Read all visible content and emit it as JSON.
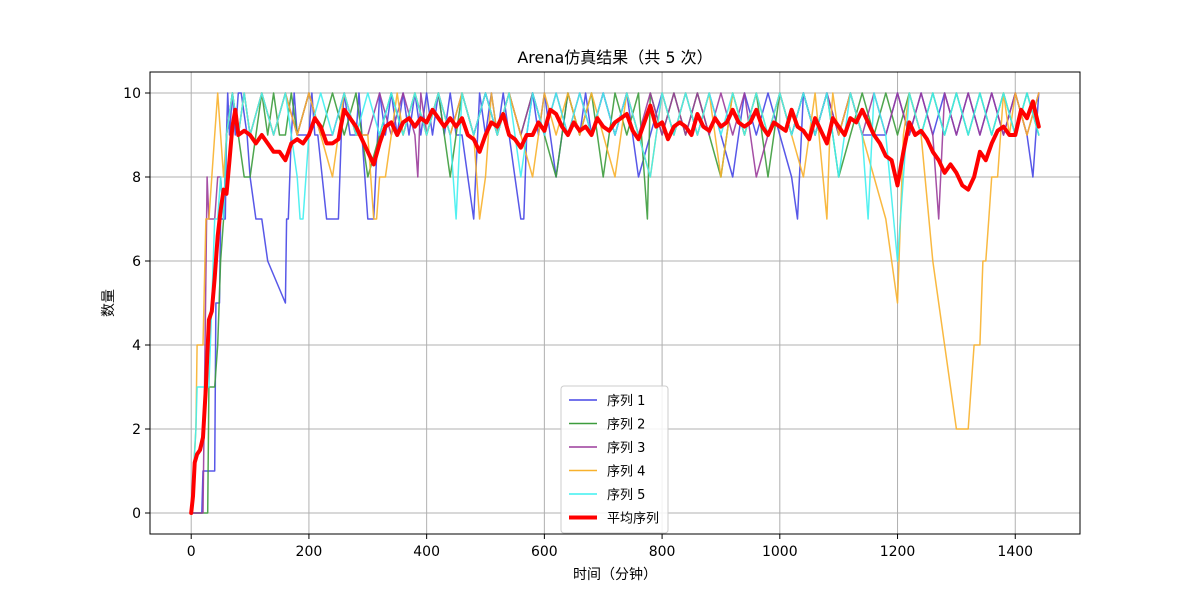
{
  "chart_data": {
    "type": "line",
    "title": "Arena仿真结果（共 5 次）",
    "xlabel": "时间（分钟）",
    "ylabel": "数量",
    "xlim": [
      -70,
      1510
    ],
    "ylim": [
      -0.5,
      10.5
    ],
    "xticks": [
      0,
      200,
      400,
      600,
      800,
      1000,
      1200,
      1400
    ],
    "yticks": [
      0,
      2,
      4,
      6,
      8,
      10
    ],
    "grid": true,
    "legend_position": "lower-center",
    "series": [
      {
        "name": "序列 1",
        "color": "#4646e6",
        "width": 1.5,
        "x": [
          0,
          10,
          18,
          20,
          40,
          42,
          48,
          50,
          55,
          58,
          60,
          62,
          65,
          70,
          75,
          80,
          85,
          95,
          100,
          110,
          115,
          120,
          130,
          160,
          162,
          165,
          170,
          175,
          180,
          185,
          200,
          205,
          210,
          215,
          230,
          250,
          255,
          260,
          270,
          280,
          285,
          290,
          300,
          310,
          320,
          330,
          340,
          350,
          360,
          370,
          380,
          390,
          400,
          410,
          420,
          430,
          440,
          450,
          460,
          470,
          480,
          490,
          500,
          510,
          520,
          530,
          540,
          550,
          560,
          565,
          570,
          580,
          590,
          600,
          620,
          640,
          660,
          670,
          680,
          700,
          720,
          740,
          760,
          780,
          800,
          820,
          840,
          860,
          880,
          900,
          920,
          940,
          960,
          980,
          1000,
          1020,
          1030,
          1040,
          1060,
          1080,
          1100,
          1120,
          1140,
          1160,
          1180,
          1200,
          1220,
          1240,
          1260,
          1280,
          1300,
          1320,
          1340,
          1360,
          1380,
          1400,
          1420,
          1430,
          1440
        ],
        "y": [
          0,
          0,
          0,
          1,
          1,
          5,
          5,
          7,
          7,
          7,
          9,
          10,
          9,
          10,
          9,
          10,
          10,
          9,
          8,
          7,
          7,
          7,
          6,
          5,
          7,
          7,
          9,
          10,
          9,
          9,
          9,
          10,
          9,
          9,
          7,
          7,
          9,
          10,
          9,
          9,
          10,
          9,
          7,
          7,
          10,
          9,
          10,
          9,
          10,
          9,
          10,
          9,
          10,
          9,
          10,
          9,
          10,
          9,
          9,
          8,
          7,
          10,
          9,
          10,
          9,
          10,
          9,
          8,
          7,
          7,
          9,
          10,
          9,
          10,
          8,
          10,
          9,
          10,
          9,
          10,
          9,
          10,
          8,
          9,
          10,
          9,
          10,
          9,
          10,
          9,
          8,
          10,
          9,
          10,
          9,
          8,
          7,
          10,
          9,
          10,
          9,
          10,
          9,
          9,
          9,
          10,
          9,
          10,
          9,
          10,
          9,
          10,
          9,
          10,
          9,
          10,
          9,
          8,
          10
        ]
      },
      {
        "name": "序列 2",
        "color": "#3c9c3c",
        "width": 1.5,
        "x": [
          0,
          20,
          28,
          30,
          40,
          45,
          50,
          55,
          60,
          70,
          80,
          90,
          100,
          110,
          120,
          130,
          140,
          150,
          160,
          170,
          180,
          200,
          220,
          240,
          260,
          280,
          300,
          320,
          340,
          360,
          380,
          400,
          420,
          440,
          460,
          480,
          500,
          520,
          540,
          560,
          580,
          600,
          620,
          640,
          660,
          680,
          700,
          720,
          740,
          760,
          775,
          780,
          800,
          820,
          840,
          860,
          880,
          900,
          920,
          940,
          960,
          980,
          1000,
          1020,
          1040,
          1060,
          1080,
          1100,
          1120,
          1140,
          1160,
          1180,
          1200,
          1220,
          1240,
          1260,
          1280,
          1300,
          1320,
          1340,
          1360,
          1380,
          1400,
          1420,
          1440
        ],
        "y": [
          0,
          0,
          0,
          3,
          3,
          4,
          6,
          7,
          9,
          10,
          9,
          8,
          8,
          9,
          10,
          9,
          10,
          9,
          9,
          10,
          9,
          10,
          9,
          10,
          9,
          10,
          8,
          9,
          10,
          9,
          10,
          9,
          10,
          8,
          10,
          9,
          10,
          9,
          10,
          9,
          10,
          9,
          8,
          10,
          9,
          10,
          8,
          10,
          9,
          10,
          7,
          10,
          9,
          10,
          9,
          10,
          9,
          8,
          10,
          9,
          10,
          8,
          10,
          9,
          10,
          9,
          10,
          8,
          9,
          10,
          9,
          10,
          9,
          10,
          9,
          10,
          9,
          10,
          9,
          10,
          9,
          10,
          9,
          10,
          9
        ]
      },
      {
        "name": "序列 3",
        "color": "#9b3c9b",
        "width": 1.5,
        "x": [
          0,
          20,
          27,
          30,
          40,
          45,
          50,
          55,
          60,
          70,
          80,
          90,
          100,
          120,
          140,
          160,
          180,
          200,
          220,
          240,
          260,
          280,
          300,
          320,
          340,
          360,
          380,
          385,
          390,
          400,
          420,
          440,
          460,
          480,
          500,
          520,
          540,
          560,
          580,
          600,
          620,
          640,
          660,
          680,
          700,
          720,
          740,
          760,
          780,
          800,
          820,
          840,
          860,
          880,
          900,
          920,
          940,
          960,
          980,
          1000,
          1020,
          1040,
          1060,
          1080,
          1100,
          1120,
          1140,
          1160,
          1180,
          1200,
          1220,
          1240,
          1260,
          1270,
          1280,
          1300,
          1320,
          1340,
          1360,
          1380,
          1400,
          1420,
          1440
        ],
        "y": [
          0,
          0,
          8,
          7,
          7,
          8,
          8,
          7,
          9,
          10,
          9,
          10,
          9,
          10,
          9,
          10,
          9,
          10,
          9,
          9,
          10,
          9,
          9,
          10,
          9,
          10,
          9,
          8,
          10,
          9,
          10,
          9,
          10,
          9,
          10,
          9,
          10,
          9,
          10,
          9,
          10,
          9,
          10,
          9,
          10,
          9,
          10,
          9,
          10,
          9,
          10,
          9,
          10,
          9,
          10,
          9,
          10,
          8,
          9,
          10,
          9,
          10,
          9,
          10,
          9,
          10,
          9,
          10,
          9,
          10,
          9,
          10,
          9,
          7,
          10,
          9,
          10,
          9,
          10,
          9,
          10,
          9,
          10
        ]
      },
      {
        "name": "序列 4",
        "color": "#f8b12c",
        "width": 1.5,
        "x": [
          0,
          8,
          10,
          20,
          25,
          30,
          40,
          45,
          50,
          55,
          60,
          70,
          80,
          90,
          100,
          120,
          140,
          160,
          180,
          200,
          220,
          240,
          260,
          280,
          300,
          310,
          315,
          320,
          330,
          340,
          350,
          360,
          380,
          400,
          420,
          440,
          460,
          480,
          490,
          500,
          510,
          520,
          540,
          560,
          580,
          600,
          620,
          640,
          660,
          680,
          700,
          720,
          740,
          760,
          780,
          800,
          820,
          840,
          860,
          880,
          900,
          920,
          940,
          960,
          980,
          1000,
          1020,
          1040,
          1060,
          1080,
          1085,
          1090,
          1100,
          1120,
          1140,
          1160,
          1180,
          1200,
          1205,
          1210,
          1220,
          1240,
          1260,
          1280,
          1300,
          1310,
          1320,
          1330,
          1340,
          1345,
          1350,
          1355,
          1360,
          1370,
          1380,
          1390,
          1400,
          1420,
          1440
        ],
        "y": [
          0,
          2,
          4,
          4,
          7,
          7,
          9,
          10,
          9,
          8,
          9,
          10,
          9,
          10,
          9,
          10,
          9,
          10,
          9,
          10,
          9,
          8,
          10,
          9,
          9,
          7,
          7,
          8,
          8,
          9,
          10,
          9,
          10,
          9,
          10,
          9,
          10,
          9,
          7,
          8,
          10,
          9,
          10,
          9,
          8,
          10,
          9,
          10,
          9,
          10,
          9,
          8,
          10,
          9,
          8,
          10,
          9,
          10,
          9,
          10,
          8,
          10,
          9,
          10,
          9,
          10,
          9,
          8,
          10,
          7,
          9,
          10,
          9,
          10,
          9,
          8,
          7,
          5,
          7,
          9,
          10,
          9,
          6,
          4,
          2,
          2,
          2,
          4,
          4,
          6,
          6,
          7,
          8,
          8,
          10,
          9,
          10,
          9,
          10
        ]
      },
      {
        "name": "序列 5",
        "color": "#3ff0f0",
        "width": 1.5,
        "x": [
          0,
          8,
          10,
          20,
          30,
          40,
          45,
          50,
          55,
          60,
          70,
          80,
          90,
          100,
          120,
          140,
          160,
          180,
          185,
          190,
          200,
          220,
          240,
          260,
          280,
          300,
          320,
          340,
          360,
          380,
          400,
          420,
          440,
          450,
          460,
          480,
          500,
          520,
          540,
          560,
          580,
          600,
          620,
          640,
          660,
          680,
          700,
          720,
          740,
          760,
          780,
          800,
          820,
          840,
          860,
          880,
          900,
          920,
          940,
          960,
          980,
          1000,
          1020,
          1040,
          1060,
          1080,
          1100,
          1120,
          1140,
          1150,
          1160,
          1180,
          1200,
          1220,
          1240,
          1260,
          1280,
          1300,
          1320,
          1340,
          1360,
          1380,
          1400,
          1420,
          1440
        ],
        "y": [
          0,
          2,
          3,
          3,
          3,
          7,
          7,
          8,
          7,
          9,
          10,
          9,
          10,
          9,
          10,
          9,
          10,
          8,
          7,
          7,
          9,
          10,
          9,
          10,
          9,
          10,
          9,
          10,
          9,
          10,
          9,
          10,
          9,
          7,
          10,
          9,
          10,
          9,
          10,
          8,
          10,
          9,
          10,
          9,
          10,
          9,
          10,
          9,
          10,
          9,
          8,
          10,
          9,
          10,
          9,
          10,
          9,
          10,
          9,
          10,
          9,
          10,
          9,
          10,
          9,
          10,
          8,
          10,
          9,
          7,
          10,
          9,
          6,
          10,
          9,
          10,
          9,
          10,
          9,
          10,
          9,
          10,
          9,
          10,
          9
        ]
      },
      {
        "name": "平均序列",
        "color": "#ff0000",
        "width": 4,
        "x": [
          0,
          3,
          6,
          10,
          15,
          20,
          25,
          30,
          35,
          40,
          45,
          50,
          55,
          60,
          65,
          70,
          75,
          80,
          90,
          100,
          110,
          120,
          130,
          140,
          150,
          160,
          170,
          180,
          190,
          200,
          210,
          220,
          230,
          240,
          250,
          260,
          270,
          280,
          290,
          300,
          310,
          320,
          330,
          340,
          350,
          360,
          370,
          380,
          390,
          400,
          410,
          420,
          430,
          440,
          450,
          460,
          470,
          480,
          490,
          500,
          510,
          520,
          530,
          540,
          550,
          560,
          570,
          580,
          590,
          600,
          610,
          620,
          630,
          640,
          650,
          660,
          670,
          680,
          690,
          700,
          710,
          720,
          730,
          740,
          750,
          760,
          770,
          780,
          790,
          800,
          810,
          820,
          830,
          840,
          850,
          860,
          870,
          880,
          890,
          900,
          910,
          920,
          930,
          940,
          950,
          960,
          970,
          980,
          990,
          1000,
          1010,
          1020,
          1030,
          1040,
          1050,
          1060,
          1070,
          1080,
          1090,
          1100,
          1110,
          1120,
          1130,
          1140,
          1150,
          1160,
          1170,
          1180,
          1190,
          1200,
          1210,
          1220,
          1230,
          1240,
          1250,
          1260,
          1270,
          1280,
          1290,
          1300,
          1310,
          1320,
          1330,
          1340,
          1350,
          1360,
          1370,
          1380,
          1390,
          1400,
          1410,
          1420,
          1430,
          1440
        ],
        "y": [
          0,
          0.4,
          1.2,
          1.4,
          1.5,
          1.8,
          3.0,
          4.6,
          4.8,
          5.6,
          6.6,
          7.2,
          7.7,
          7.6,
          8.4,
          9.2,
          9.6,
          9.0,
          9.1,
          9.0,
          8.8,
          9.0,
          8.8,
          8.6,
          8.6,
          8.4,
          8.8,
          8.9,
          8.8,
          9.0,
          9.4,
          9.2,
          8.8,
          8.8,
          8.9,
          9.6,
          9.4,
          9.2,
          8.9,
          8.6,
          8.3,
          8.8,
          9.2,
          9.3,
          9.0,
          9.3,
          9.4,
          9.2,
          9.4,
          9.3,
          9.6,
          9.4,
          9.2,
          9.4,
          9.2,
          9.4,
          9.0,
          8.9,
          8.6,
          9.0,
          9.3,
          9.2,
          9.5,
          9.0,
          8.9,
          8.7,
          9.0,
          9.0,
          9.3,
          9.1,
          9.6,
          9.5,
          9.2,
          9.0,
          9.3,
          9.1,
          9.2,
          9.0,
          9.4,
          9.2,
          9.1,
          9.3,
          9.4,
          9.5,
          9.1,
          8.9,
          9.3,
          9.7,
          9.2,
          9.3,
          8.9,
          9.2,
          9.3,
          9.2,
          9.0,
          9.5,
          9.2,
          9.1,
          9.4,
          9.2,
          9.3,
          9.6,
          9.3,
          9.2,
          9.3,
          9.6,
          9.2,
          9.0,
          9.3,
          9.2,
          9.1,
          9.6,
          9.2,
          9.1,
          8.9,
          9.4,
          9.1,
          8.8,
          9.4,
          9.2,
          9.0,
          9.4,
          9.3,
          9.6,
          9.3,
          9.0,
          8.8,
          8.5,
          8.4,
          7.8,
          8.6,
          9.3,
          9.0,
          9.1,
          8.9,
          8.6,
          8.4,
          8.1,
          8.3,
          8.1,
          7.8,
          7.7,
          8.0,
          8.6,
          8.4,
          8.8,
          9.1,
          9.2,
          9.0,
          9.0,
          9.6,
          9.4,
          9.8,
          9.2
        ]
      }
    ]
  }
}
